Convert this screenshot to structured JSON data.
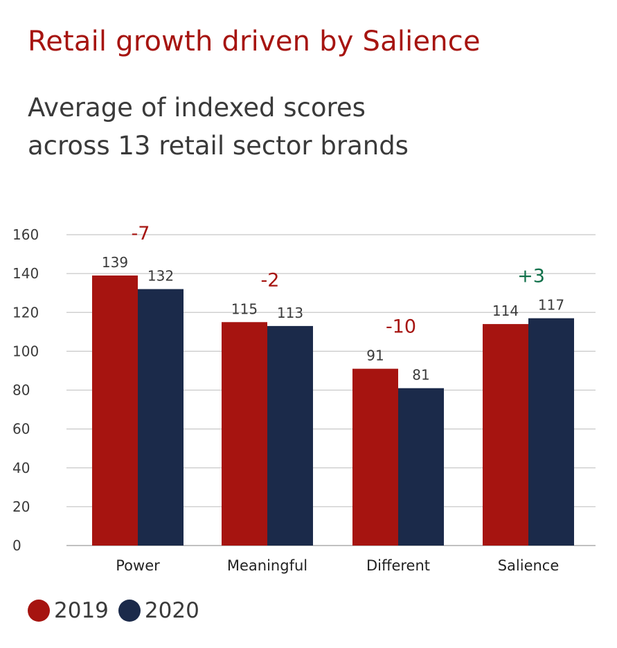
{
  "chart_data": {
    "type": "bar",
    "title": "Retail growth driven by Salience",
    "subtitle_lines": [
      "Average of indexed scores",
      "across 13 retail sector brands"
    ],
    "categories": [
      "Power",
      "Meaningful",
      "Different",
      "Salience"
    ],
    "series": [
      {
        "name": "2019",
        "values": [
          139,
          115,
          91,
          114
        ],
        "value_labels": [
          "139",
          "115",
          "91",
          "114"
        ]
      },
      {
        "name": "2020",
        "values": [
          132,
          113,
          81,
          117
        ],
        "value_labels": [
          "132",
          "113",
          "81",
          "117"
        ]
      }
    ],
    "changes": [
      "-7",
      "-2",
      "-10",
      "+3"
    ],
    "ylim": [
      0,
      160
    ],
    "yticks": [
      0,
      20,
      40,
      60,
      80,
      100,
      120,
      140,
      160
    ],
    "xlabel": "",
    "ylabel": "",
    "grid": true,
    "legend_position": "bottom-left"
  },
  "colors": {
    "title": "#a61410",
    "series_2019": "#a61410",
    "series_2020": "#1b2a4a",
    "change_negative": "#a61410",
    "change_positive": "#10704a",
    "grid": "#c8c8c8",
    "text": "#3a3a3a"
  }
}
